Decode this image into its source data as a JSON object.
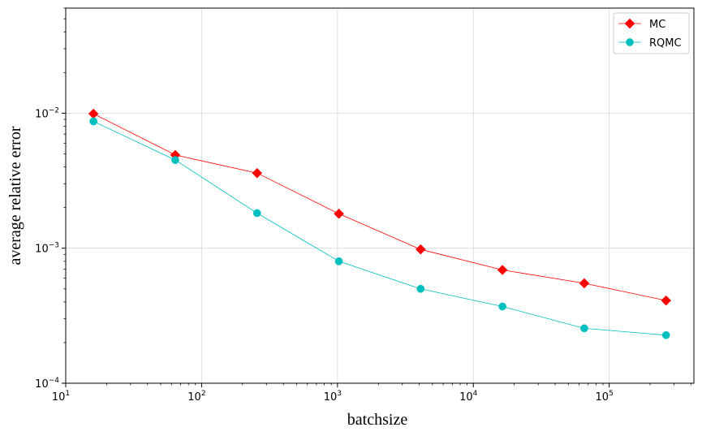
{
  "chart_data": {
    "type": "line",
    "xscale": "log",
    "yscale": "log",
    "xlabel": "batchsize",
    "ylabel": "average relative error",
    "xlim": [
      10,
      420000
    ],
    "ylim": [
      0.0001,
      0.06
    ],
    "grid": true,
    "legend_position": "top-right",
    "x_ticks": [
      {
        "base": "10",
        "exp": "1",
        "value": 10
      },
      {
        "base": "10",
        "exp": "2",
        "value": 100
      },
      {
        "base": "10",
        "exp": "3",
        "value": 1000
      },
      {
        "base": "10",
        "exp": "4",
        "value": 10000
      },
      {
        "base": "10",
        "exp": "5",
        "value": 100000
      }
    ],
    "y_ticks": [
      {
        "base": "10",
        "exp": "−4",
        "value": 0.0001
      },
      {
        "base": "10",
        "exp": "−3",
        "value": 0.001
      },
      {
        "base": "10",
        "exp": "−2",
        "value": 0.01
      }
    ],
    "x": [
      16,
      64,
      256,
      1024,
      4096,
      16384,
      65536,
      262144
    ],
    "series": [
      {
        "name": "MC",
        "color": "#ff0000",
        "marker": "diamond",
        "values": [
          0.0099,
          0.0049,
          0.0036,
          0.0018,
          0.00098,
          0.00069,
          0.00055,
          0.00041
        ]
      },
      {
        "name": "RQMC",
        "color": "#00bfbf",
        "marker": "circle",
        "values": [
          0.0087,
          0.0045,
          0.00182,
          0.0008,
          0.0005,
          0.00037,
          0.000255,
          0.000227
        ]
      }
    ]
  }
}
